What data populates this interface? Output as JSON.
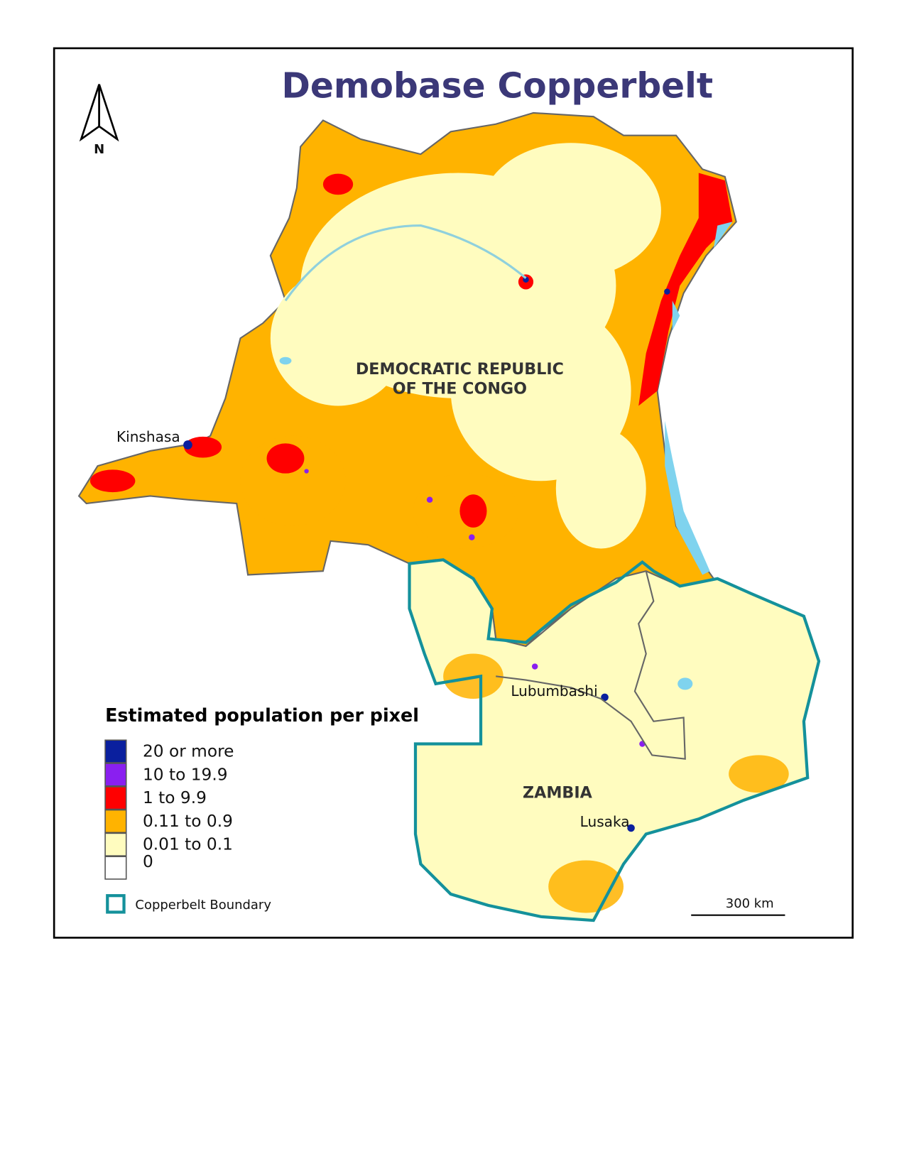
{
  "title": "Demobase Copperbelt",
  "north_arrow": {
    "label": "N"
  },
  "countries": [
    {
      "lines": [
        "DEMOCRATIC REPUBLIC",
        "OF THE CONGO"
      ]
    },
    {
      "lines": [
        "ZAMBIA"
      ]
    }
  ],
  "cities": [
    "Kinshasa",
    "Lubumbashi",
    "Lusaka"
  ],
  "legend": {
    "title": "Estimated population per pixel",
    "items": [
      {
        "label": "20 or more",
        "color": "#0a1f9e"
      },
      {
        "label": "10 to 19.9",
        "color": "#8a1ff0"
      },
      {
        "label": "1 to 9.9",
        "color": "#ff0000"
      },
      {
        "label": "0.11 to 0.9",
        "color": "#ffb300"
      },
      {
        "label": "0.01 to 0.1",
        "color": "#fffcbf"
      },
      {
        "label": "0",
        "color": "#ffffff"
      }
    ],
    "boundary": {
      "label": "Copperbelt Boundary",
      "color": "#14919b"
    }
  },
  "scale_bar": {
    "label": "300 km"
  }
}
